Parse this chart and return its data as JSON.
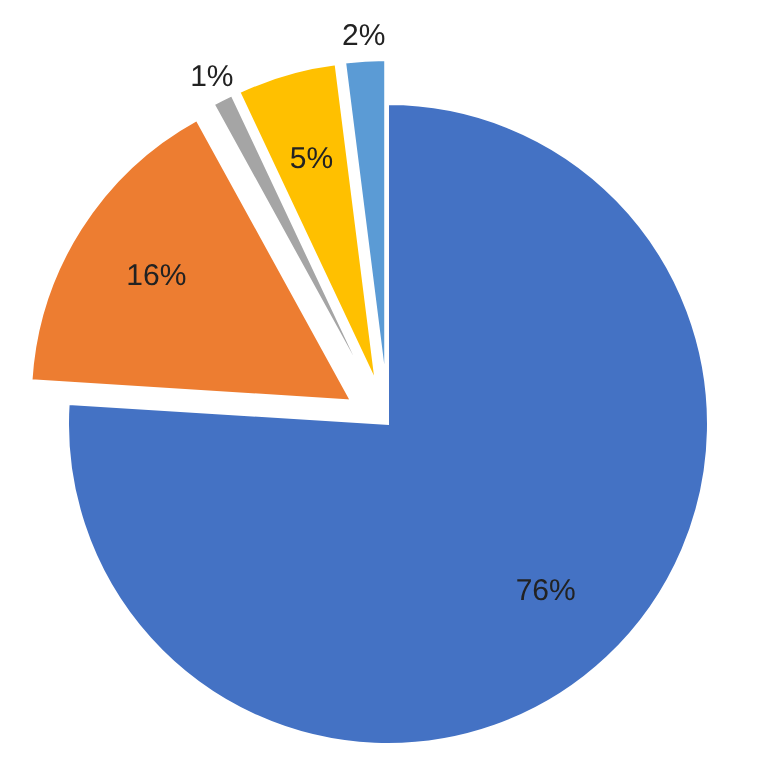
{
  "chart_data": {
    "type": "pie",
    "categories": [
      null,
      null,
      null,
      null,
      null
    ],
    "values": [
      76,
      16,
      1,
      5,
      2
    ],
    "colors": [
      "#4472c4",
      "#ed7d31",
      "#a5a5a5",
      "#ffc000",
      "#5b9bd5"
    ],
    "value_labels": [
      "76%",
      "16%",
      "1%",
      "5%",
      "2%"
    ]
  }
}
